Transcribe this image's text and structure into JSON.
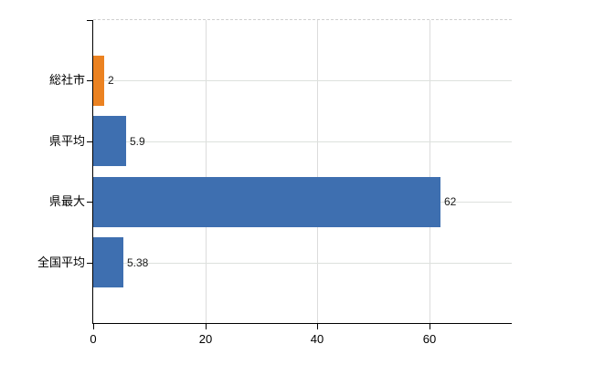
{
  "chart_data": {
    "type": "bar",
    "orientation": "horizontal",
    "categories": [
      "総社市",
      "県平均",
      "県最大",
      "全国平均"
    ],
    "values": [
      2,
      5.9,
      62,
      5.38
    ],
    "value_labels": [
      "2",
      "5.9",
      "62",
      "5.38"
    ],
    "bar_colors": [
      "#eb8221",
      "#3e6fb0",
      "#3e6fb0",
      "#3e6fb0"
    ],
    "xlim": [
      0,
      74.7
    ],
    "x_ticks": [
      20,
      40,
      60
    ],
    "x_tick_labels_all": [
      "0",
      "20",
      "40",
      "60"
    ],
    "x_tick_values_all": [
      0,
      20,
      40,
      60
    ],
    "grid": true,
    "legend": "none",
    "title": "",
    "xlabel": "",
    "ylabel": "",
    "colors": {
      "highlight_bar": "#eb8221",
      "default_bar": "#3e6fb0",
      "axis": "#000000",
      "gridline": "#dcdcdc",
      "text": "#000000",
      "background": "#ffffff"
    }
  }
}
